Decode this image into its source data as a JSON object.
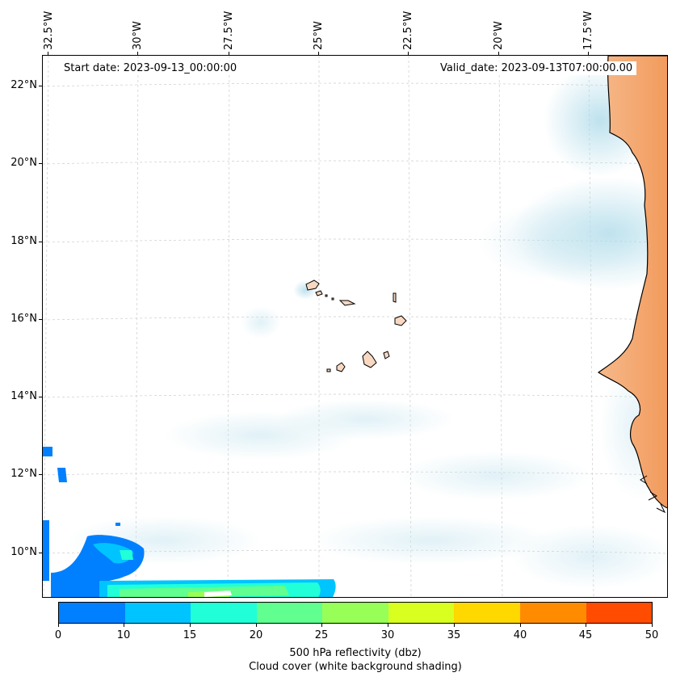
{
  "info": {
    "start_date": "Start date: 2023-09-13_00:00:00",
    "valid_date": "Valid_date: 2023-09-13T07:00:00.00"
  },
  "longitude_labels": [
    "32.5°W",
    "30°W",
    "27.5°W",
    "25°W",
    "22.5°W",
    "20°W",
    "17.5°W"
  ],
  "latitude_labels": [
    "22°N",
    "20°N",
    "18°N",
    "16°N",
    "14°N",
    "12°N",
    "10°N"
  ],
  "colorbar": {
    "ticks": [
      "0",
      "10",
      "15",
      "20",
      "25",
      "30",
      "35",
      "40",
      "45",
      "50"
    ],
    "colors": [
      "#0080ff",
      "#00c4ff",
      "#20ffd8",
      "#60ff90",
      "#98ff58",
      "#d8ff20",
      "#ffd800",
      "#ff8c00",
      "#ff4c00"
    ],
    "label_line1": "500 hPa reflectivity (dbz)",
    "label_line2": "Cloud cover (white background shading)"
  },
  "colors": {
    "land": "#f4a460",
    "cloud": "#a8d8e8",
    "gridline": "#cccccc"
  }
}
